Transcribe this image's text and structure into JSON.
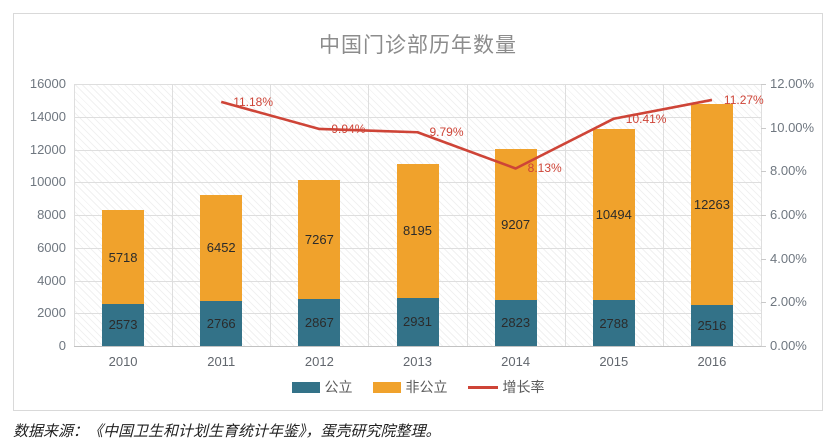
{
  "chart_data": {
    "type": "combo",
    "stacked": true,
    "grid": true,
    "title": "中国门诊部历年数量",
    "categories": [
      "2010",
      "2011",
      "2012",
      "2013",
      "2014",
      "2015",
      "2016"
    ],
    "series": [
      {
        "name": "公立",
        "type": "bar",
        "color": "#337288",
        "values": [
          2573,
          2766,
          2867,
          2931,
          2823,
          2788,
          2516
        ]
      },
      {
        "name": "非公立",
        "type": "bar",
        "color": "#F0A22C",
        "values": [
          5718,
          6452,
          7267,
          8195,
          9207,
          10494,
          12263
        ]
      },
      {
        "name": "增长率",
        "type": "line",
        "axis": "right",
        "color": "#CE4437",
        "values": [
          null,
          11.18,
          9.94,
          9.79,
          8.13,
          10.41,
          11.27
        ],
        "point_labels": [
          "",
          "11.18%",
          "9.94%",
          "9.79%",
          "8.13%",
          "10.41%",
          "11.27%"
        ]
      }
    ],
    "left_axis": {
      "min": 0,
      "max": 16000,
      "step": 2000,
      "ticks_top_down": [
        "16000",
        "14000",
        "12000",
        "10000",
        "8000",
        "6000",
        "4000",
        "2000",
        "0"
      ]
    },
    "right_axis": {
      "min": 0,
      "max": 12,
      "step": 2,
      "ticks_top_down": [
        "12.00%",
        "10.00%",
        "8.00%",
        "6.00%",
        "4.00%",
        "2.00%",
        "0.00%"
      ]
    },
    "legend_position": "bottom"
  },
  "footer": {
    "source_text": "数据来源：《中国卫生和计划生育统计年鉴》，蛋壳研究院整理。"
  }
}
